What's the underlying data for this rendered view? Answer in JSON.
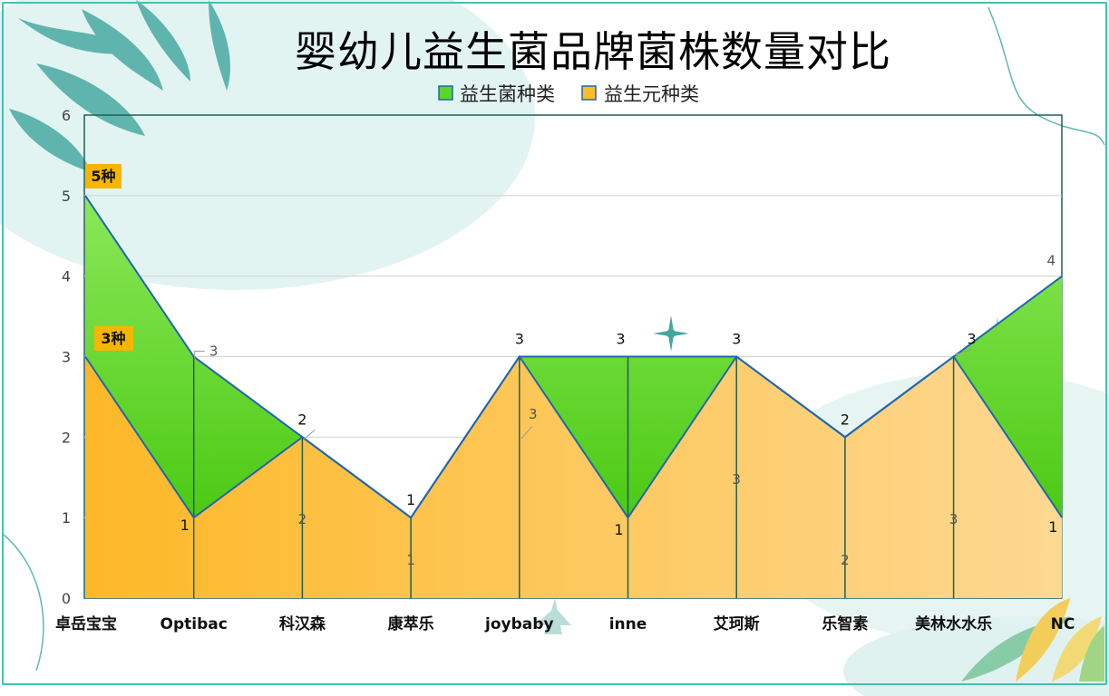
{
  "colors": {
    "probiotic_top": "#7ae04a",
    "probiotic_bottom": "#4ccc15",
    "prebiotic_top": "#fdbb2d",
    "prebiotic_bottom": "#fdd588",
    "line": "#1f66b0",
    "divider": "#1f5f55",
    "callout_bg": "#f7b500",
    "frame": "#3fc4b4"
  },
  "chart_data": {
    "type": "area",
    "title": "婴幼儿益生菌品牌菌株数量对比",
    "categories": [
      "卓岳宝宝",
      "Optibac",
      "科汉森",
      "康萃乐",
      "joybaby",
      "inne",
      "艾珂斯",
      "乐智素",
      "美林水水乐",
      "NC"
    ],
    "series": [
      {
        "name": "益生菌种类",
        "values": [
          5,
          3,
          2,
          1,
          3,
          3,
          3,
          2,
          3,
          4
        ]
      },
      {
        "name": "益生元种类",
        "values": [
          3,
          1,
          2,
          1,
          3,
          1,
          3,
          2,
          3,
          1
        ]
      }
    ],
    "ylim": [
      0,
      6
    ],
    "yticks": [
      "0",
      "1",
      "2",
      "3",
      "4",
      "5",
      "6"
    ],
    "grid": true,
    "legend": "top-center",
    "callouts": [
      "5种",
      "3种"
    ]
  }
}
